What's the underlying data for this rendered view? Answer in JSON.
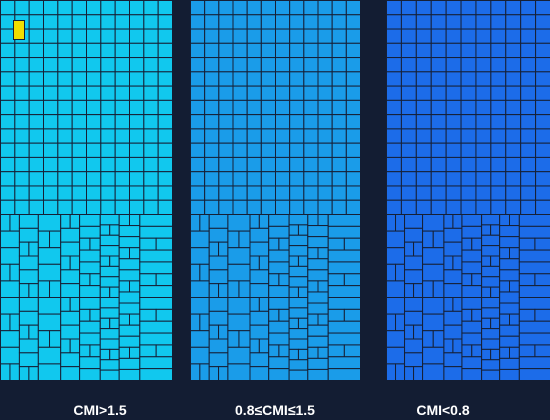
{
  "panels": [
    {
      "id": "high",
      "label": "CMI>1.5",
      "color": "#11c8ee",
      "highlight": "#f1dd00"
    },
    {
      "id": "mid",
      "label": "0.8≤CMI≤1.5",
      "color": "#1a9ce9",
      "highlight": null
    },
    {
      "id": "low",
      "label": "CMI<0.8",
      "color": "#1c6ce9",
      "highlight": null
    }
  ],
  "colors": {
    "background": "#131d33",
    "grid_line": "#162036"
  }
}
